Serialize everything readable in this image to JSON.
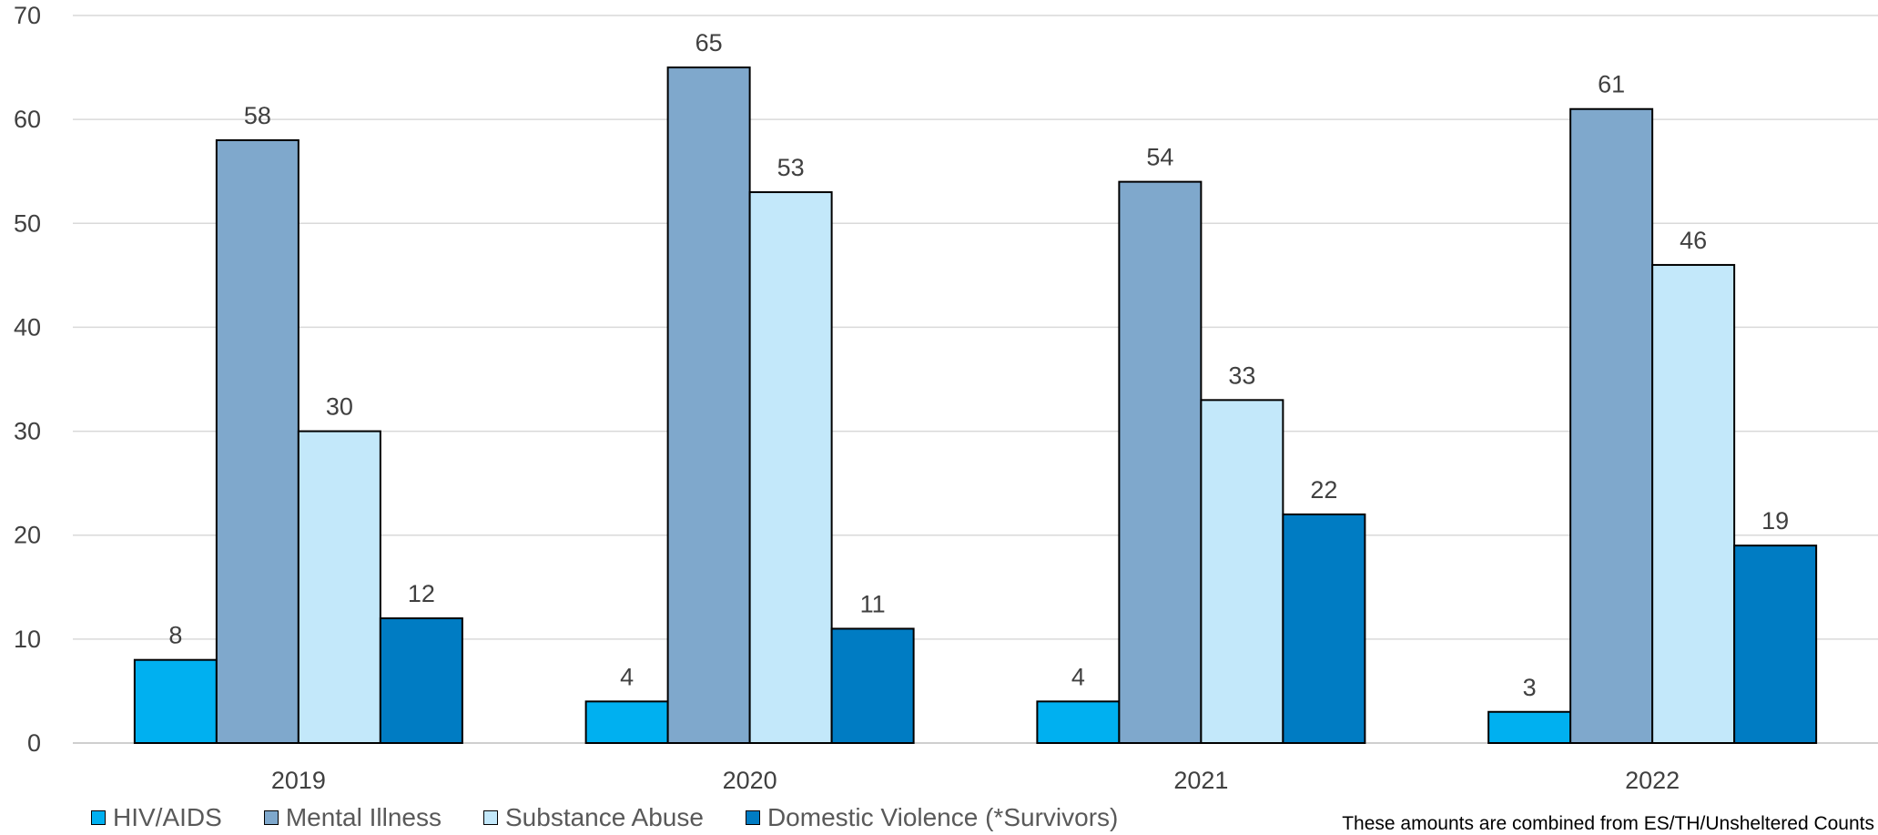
{
  "chart_data": {
    "type": "bar",
    "categories": [
      "2019",
      "2020",
      "2021",
      "2022"
    ],
    "series": [
      {
        "name": "HIV/AIDS",
        "values": [
          8,
          4,
          4,
          3
        ],
        "color": "#00B0F0"
      },
      {
        "name": "Mental Illness",
        "values": [
          58,
          65,
          54,
          61
        ],
        "color": "#7FA8CC"
      },
      {
        "name": "Substance Abuse",
        "values": [
          30,
          53,
          33,
          46
        ],
        "color": "#C3E8FA"
      },
      {
        "name": "Domestic Violence (*Survivors)",
        "values": [
          12,
          11,
          22,
          19
        ],
        "color": "#007CC3"
      }
    ],
    "ylim": [
      0,
      70
    ],
    "yticks": [
      0,
      10,
      20,
      30,
      40,
      50,
      60,
      70
    ],
    "grid": true,
    "legend_position": "bottom"
  },
  "note": "These amounts are combined from ES/TH/Unsheltered Counts"
}
